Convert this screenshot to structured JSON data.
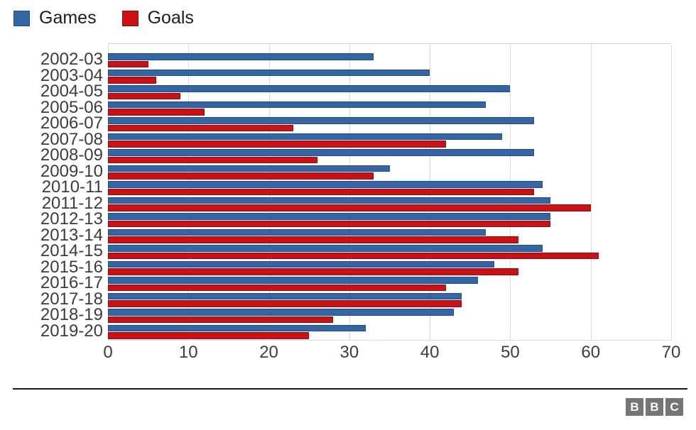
{
  "chart_data": {
    "type": "bar",
    "orientation": "horizontal",
    "title": "",
    "xlabel": "",
    "ylabel": "",
    "xlim": [
      0,
      70
    ],
    "xticks": [
      0,
      10,
      20,
      30,
      40,
      50,
      60,
      70
    ],
    "grid": "vertical-light-gray",
    "legend_position": "top-left",
    "categories": [
      "2002-03",
      "2003-04",
      "2004-05",
      "2005-06",
      "2006-07",
      "2007-08",
      "2008-09",
      "2009-10",
      "2010-11",
      "2011-12",
      "2012-13",
      "2013-14",
      "2014-15",
      "2015-16",
      "2016-17",
      "2017-18",
      "2018-19",
      "2019-20"
    ],
    "series": [
      {
        "name": "Games",
        "color": "#3366a8",
        "border_color": "#234d82",
        "values": [
          33,
          40,
          50,
          47,
          53,
          49,
          53,
          35,
          54,
          55,
          55,
          47,
          54,
          48,
          46,
          44,
          43,
          32
        ]
      },
      {
        "name": "Goals",
        "color": "#cc1014",
        "border_color": "#930b0e",
        "values": [
          5,
          6,
          9,
          12,
          23,
          42,
          26,
          33,
          53,
          60,
          55,
          51,
          61,
          51,
          42,
          44,
          28,
          25
        ]
      }
    ]
  },
  "legend": {
    "items": [
      {
        "label": "Games",
        "color": "#3366a8",
        "border_color": "#234d82"
      },
      {
        "label": "Goals",
        "color": "#cc1014",
        "border_color": "#930b0e"
      }
    ]
  },
  "axis": {
    "tick_labels": [
      "0",
      "10",
      "20",
      "30",
      "40",
      "50",
      "60",
      "70"
    ]
  },
  "footer": {
    "logo_letters": [
      "B",
      "B",
      "C"
    ],
    "logo_block_color": "#757575",
    "logo_letter_color": "#ffffff"
  },
  "colors": {
    "gridline": "#d9d9d9",
    "axis_text": "#3c3c3c",
    "divider": "#1c1c1c",
    "background": "#ffffff"
  }
}
